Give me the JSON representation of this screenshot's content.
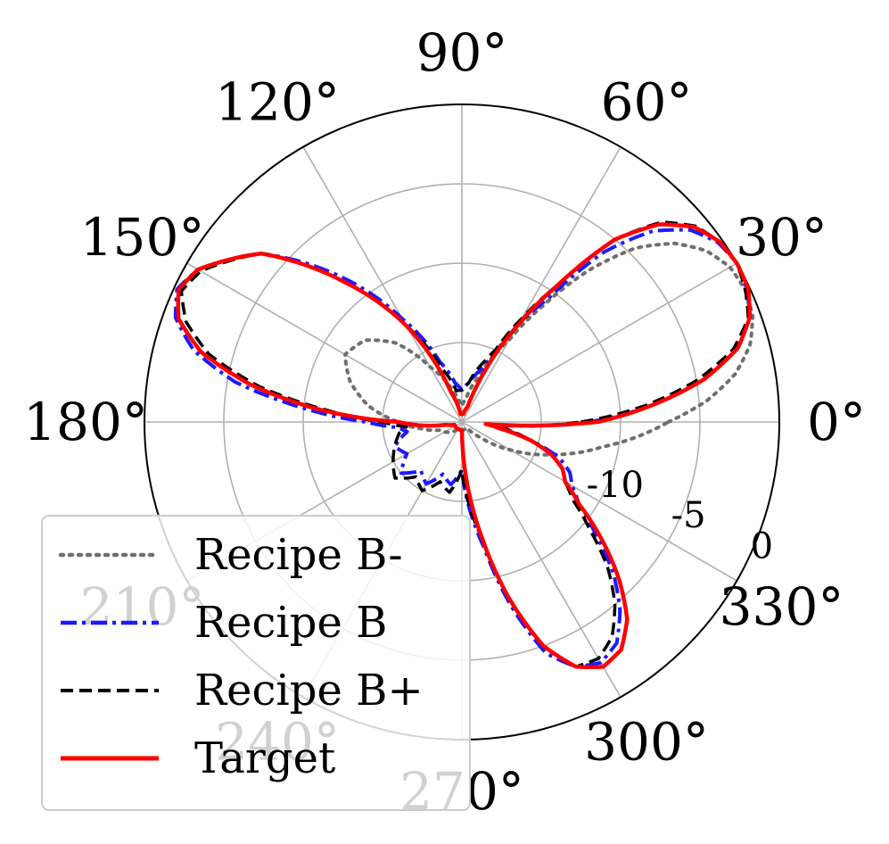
{
  "chart_data": {
    "type": "line",
    "projection": "polar",
    "title": "",
    "grid": true,
    "r_range": [
      -20,
      0
    ],
    "angular_ticks": [
      "0°",
      "30°",
      "60°",
      "90°",
      "120°",
      "150°",
      "180°",
      "210°",
      "240°",
      "270°",
      "300°",
      "330°"
    ],
    "radial_ticks": [
      "-10",
      "-5",
      "0"
    ],
    "legend": {
      "placement": "lower-left",
      "entries": [
        "Recipe B-",
        "Recipe B",
        "Recipe B+",
        "Target"
      ]
    },
    "series": [
      {
        "name": "Recipe B-",
        "color": "#6f6f6f",
        "style": "dotted",
        "theta_deg": [
          0,
          5,
          10,
          15,
          20,
          25,
          30,
          35,
          40,
          45,
          50,
          55,
          60,
          70,
          80,
          90,
          100,
          110,
          120,
          130,
          140,
          150,
          160,
          170,
          180,
          190,
          200,
          220,
          240,
          260,
          280,
          290,
          300,
          310,
          320,
          330,
          340,
          350,
          355,
          360
        ],
        "r_db": [
          -7,
          -4.5,
          -2.5,
          -1.2,
          -0.5,
          -0.3,
          -0.5,
          -1.2,
          -2.5,
          -4.5,
          -7.5,
          -11,
          -14,
          -17,
          -18.5,
          -19,
          -18.5,
          -17.5,
          -16,
          -13.5,
          -12,
          -11.5,
          -12.5,
          -14,
          -16,
          -17.5,
          -18.5,
          -19,
          -19.5,
          -19.5,
          -19.5,
          -19.5,
          -19.5,
          -19.5,
          -18.5,
          -16.5,
          -14,
          -11,
          -9,
          -7
        ]
      },
      {
        "name": "Recipe B",
        "color": "#1a1aff",
        "style": "dashdot",
        "theta_deg": [
          0,
          5,
          10,
          15,
          20,
          25,
          30,
          35,
          40,
          45,
          50,
          55,
          60,
          65,
          70,
          80,
          90,
          100,
          110,
          120,
          130,
          140,
          150,
          155,
          160,
          165,
          170,
          175,
          180,
          185,
          190,
          200,
          210,
          220,
          230,
          240,
          250,
          260,
          270,
          280,
          285,
          290,
          295,
          300,
          305,
          310,
          315,
          320,
          325,
          330,
          335,
          340,
          345,
          350,
          355,
          360
        ],
        "r_db": [
          -12,
          -8,
          -4.5,
          -2,
          -0.7,
          -0.2,
          0,
          -0.3,
          -1.2,
          -3,
          -6,
          -10.5,
          -13,
          -15.5,
          -16.5,
          -17.5,
          -18,
          -17.5,
          -16,
          -12.5,
          -8,
          -3.5,
          -0.8,
          -0.2,
          -0.8,
          -2.5,
          -5.5,
          -10,
          -14,
          -16,
          -16.5,
          -15.5,
          -16,
          -15,
          -16,
          -15.5,
          -16.5,
          -16,
          -17,
          -12,
          -8,
          -4.5,
          -3,
          -2.5,
          -3,
          -4.5,
          -6.5,
          -9,
          -11,
          -12,
          -12.5,
          -13.5,
          -15.5,
          -17,
          -17.5,
          -12
        ]
      },
      {
        "name": "Recipe B+",
        "color": "#000000",
        "style": "dashed",
        "theta_deg": [
          0,
          5,
          10,
          15,
          20,
          25,
          30,
          35,
          40,
          45,
          50,
          55,
          60,
          65,
          70,
          80,
          90,
          100,
          110,
          120,
          130,
          140,
          150,
          155,
          160,
          165,
          170,
          175,
          180,
          185,
          190,
          200,
          210,
          220,
          230,
          240,
          250,
          260,
          270,
          280,
          285,
          290,
          295,
          300,
          305,
          310,
          315,
          320,
          325,
          330,
          335,
          340,
          345,
          350,
          355,
          360
        ],
        "r_db": [
          -12.5,
          -8.5,
          -5,
          -2.3,
          -0.8,
          -0.3,
          0,
          -0.2,
          -0.8,
          -2.2,
          -5,
          -9.5,
          -12.5,
          -15,
          -16,
          -17.5,
          -18,
          -18,
          -16.5,
          -13,
          -8.5,
          -3.5,
          -1,
          -0.5,
          -1.5,
          -3.5,
          -7,
          -11.5,
          -15,
          -16.5,
          -16,
          -15.5,
          -15,
          -14.5,
          -15.5,
          -15,
          -16,
          -15.5,
          -17,
          -12.5,
          -8.5,
          -5,
          -3,
          -2.8,
          -3.5,
          -5,
          -7,
          -9.5,
          -11.5,
          -12.5,
          -13,
          -14,
          -15.5,
          -17,
          -17.5,
          -12.5
        ]
      },
      {
        "name": "Target",
        "color": "#ff0000",
        "style": "solid",
        "theta_deg": [
          0,
          5,
          10,
          15,
          20,
          25,
          30,
          35,
          40,
          45,
          50,
          55,
          60,
          65,
          70,
          80,
          90,
          100,
          110,
          120,
          130,
          140,
          150,
          155,
          160,
          165,
          170,
          175,
          180,
          190,
          200,
          220,
          240,
          260,
          270,
          280,
          285,
          290,
          295,
          300,
          305,
          310,
          315,
          320,
          325,
          330,
          335,
          340,
          345,
          350,
          355,
          360
        ],
        "r_db": [
          -11.5,
          -8,
          -4.5,
          -2,
          -0.7,
          -0.1,
          0,
          -0.2,
          -0.9,
          -2.4,
          -5,
          -9.5,
          -13,
          -16,
          -19,
          -19.5,
          -19.5,
          -19.5,
          -18,
          -13,
          -8.5,
          -3.5,
          -0.8,
          -0.3,
          -1,
          -3,
          -6.5,
          -11,
          -16,
          -19,
          -19.5,
          -19.5,
          -19.5,
          -19.5,
          -19.5,
          -12.5,
          -8.5,
          -5,
          -3,
          -2.2,
          -2.5,
          -3.8,
          -6,
          -8.5,
          -11,
          -12.5,
          -13,
          -14,
          -15.5,
          -17.5,
          -18.5,
          -11.5
        ]
      }
    ]
  }
}
